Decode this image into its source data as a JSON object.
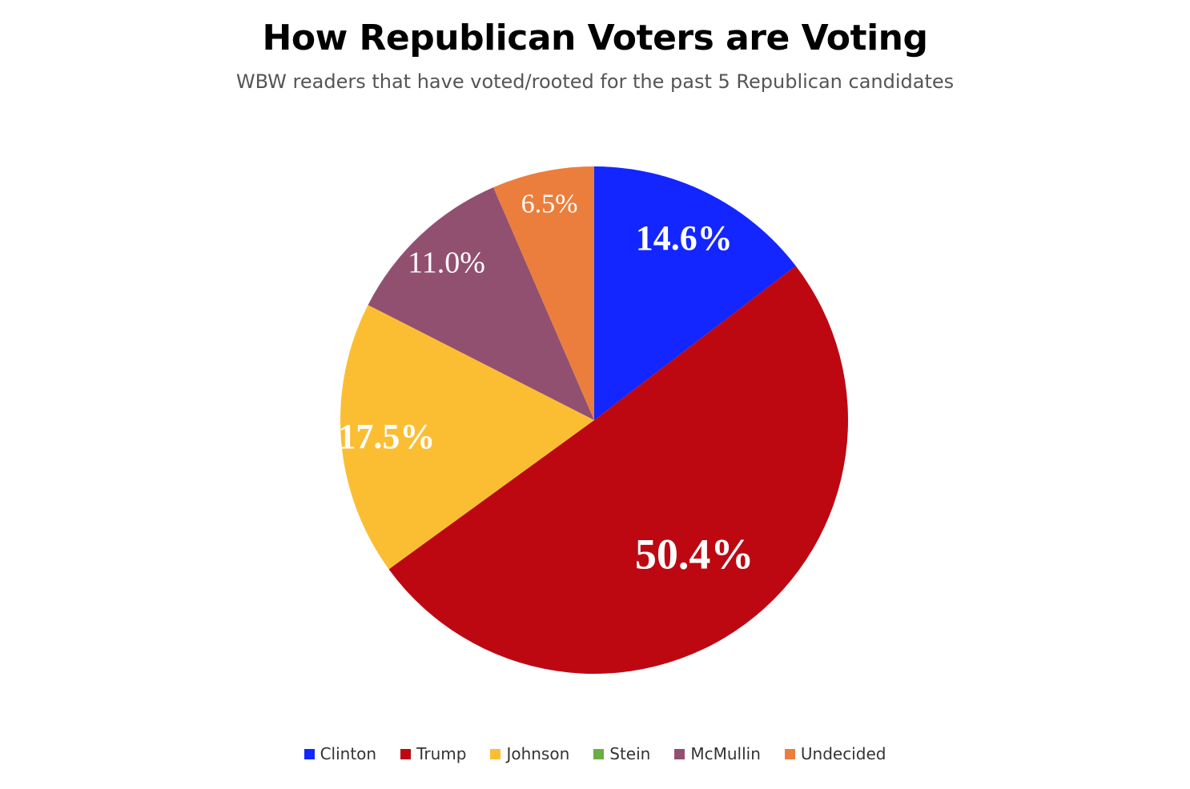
{
  "chart_data": {
    "type": "pie",
    "title": "How Republican Voters are Voting",
    "subtitle": "WBW readers that have voted/rooted for the past 5 Republican candidates",
    "legend_position": "bottom",
    "slices": [
      {
        "name": "Clinton",
        "value": 14.6,
        "label": "14.6%",
        "color": "#1426FF",
        "label_weight": "bold"
      },
      {
        "name": "Trump",
        "value": 50.4,
        "label": "50.4%",
        "color": "#BD0812",
        "label_weight": "bold"
      },
      {
        "name": "Johnson",
        "value": 17.5,
        "label": "17.5%",
        "color": "#FBBE33",
        "label_weight": "bold"
      },
      {
        "name": "Stein",
        "value": 0,
        "label": "",
        "color": "#6AAE46",
        "label_weight": "normal"
      },
      {
        "name": "McMullin",
        "value": 11.0,
        "label": "11.0%",
        "color": "#925071",
        "label_weight": "normal"
      },
      {
        "name": "Undecided",
        "value": 6.5,
        "label": "6.5%",
        "color": "#EB7E3C",
        "label_weight": "normal"
      }
    ]
  }
}
